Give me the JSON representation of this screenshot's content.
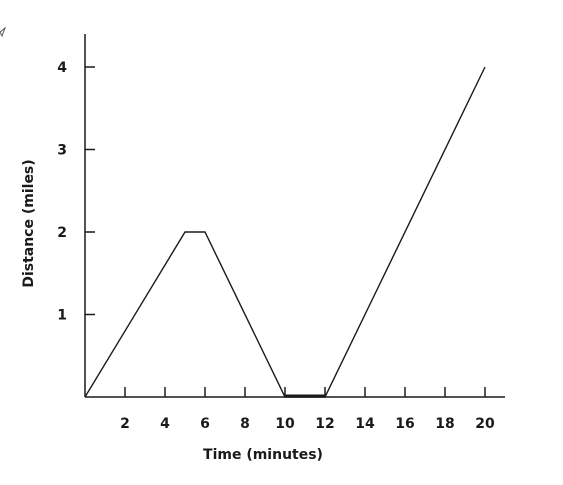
{
  "chart_data": {
    "type": "line",
    "title": "",
    "xlabel": "Time (minutes)",
    "ylabel": "Distance (miles)",
    "xlim": [
      0,
      21
    ],
    "ylim": [
      0,
      4.4
    ],
    "x_ticks": [
      2,
      4,
      6,
      8,
      10,
      12,
      14,
      16,
      18,
      20
    ],
    "y_ticks": [
      1,
      2,
      3,
      4
    ],
    "grid": false,
    "series": [
      {
        "x": [
          0,
          5,
          6,
          10,
          12,
          20
        ],
        "y": [
          0,
          2,
          2,
          0,
          0,
          4
        ]
      }
    ]
  }
}
